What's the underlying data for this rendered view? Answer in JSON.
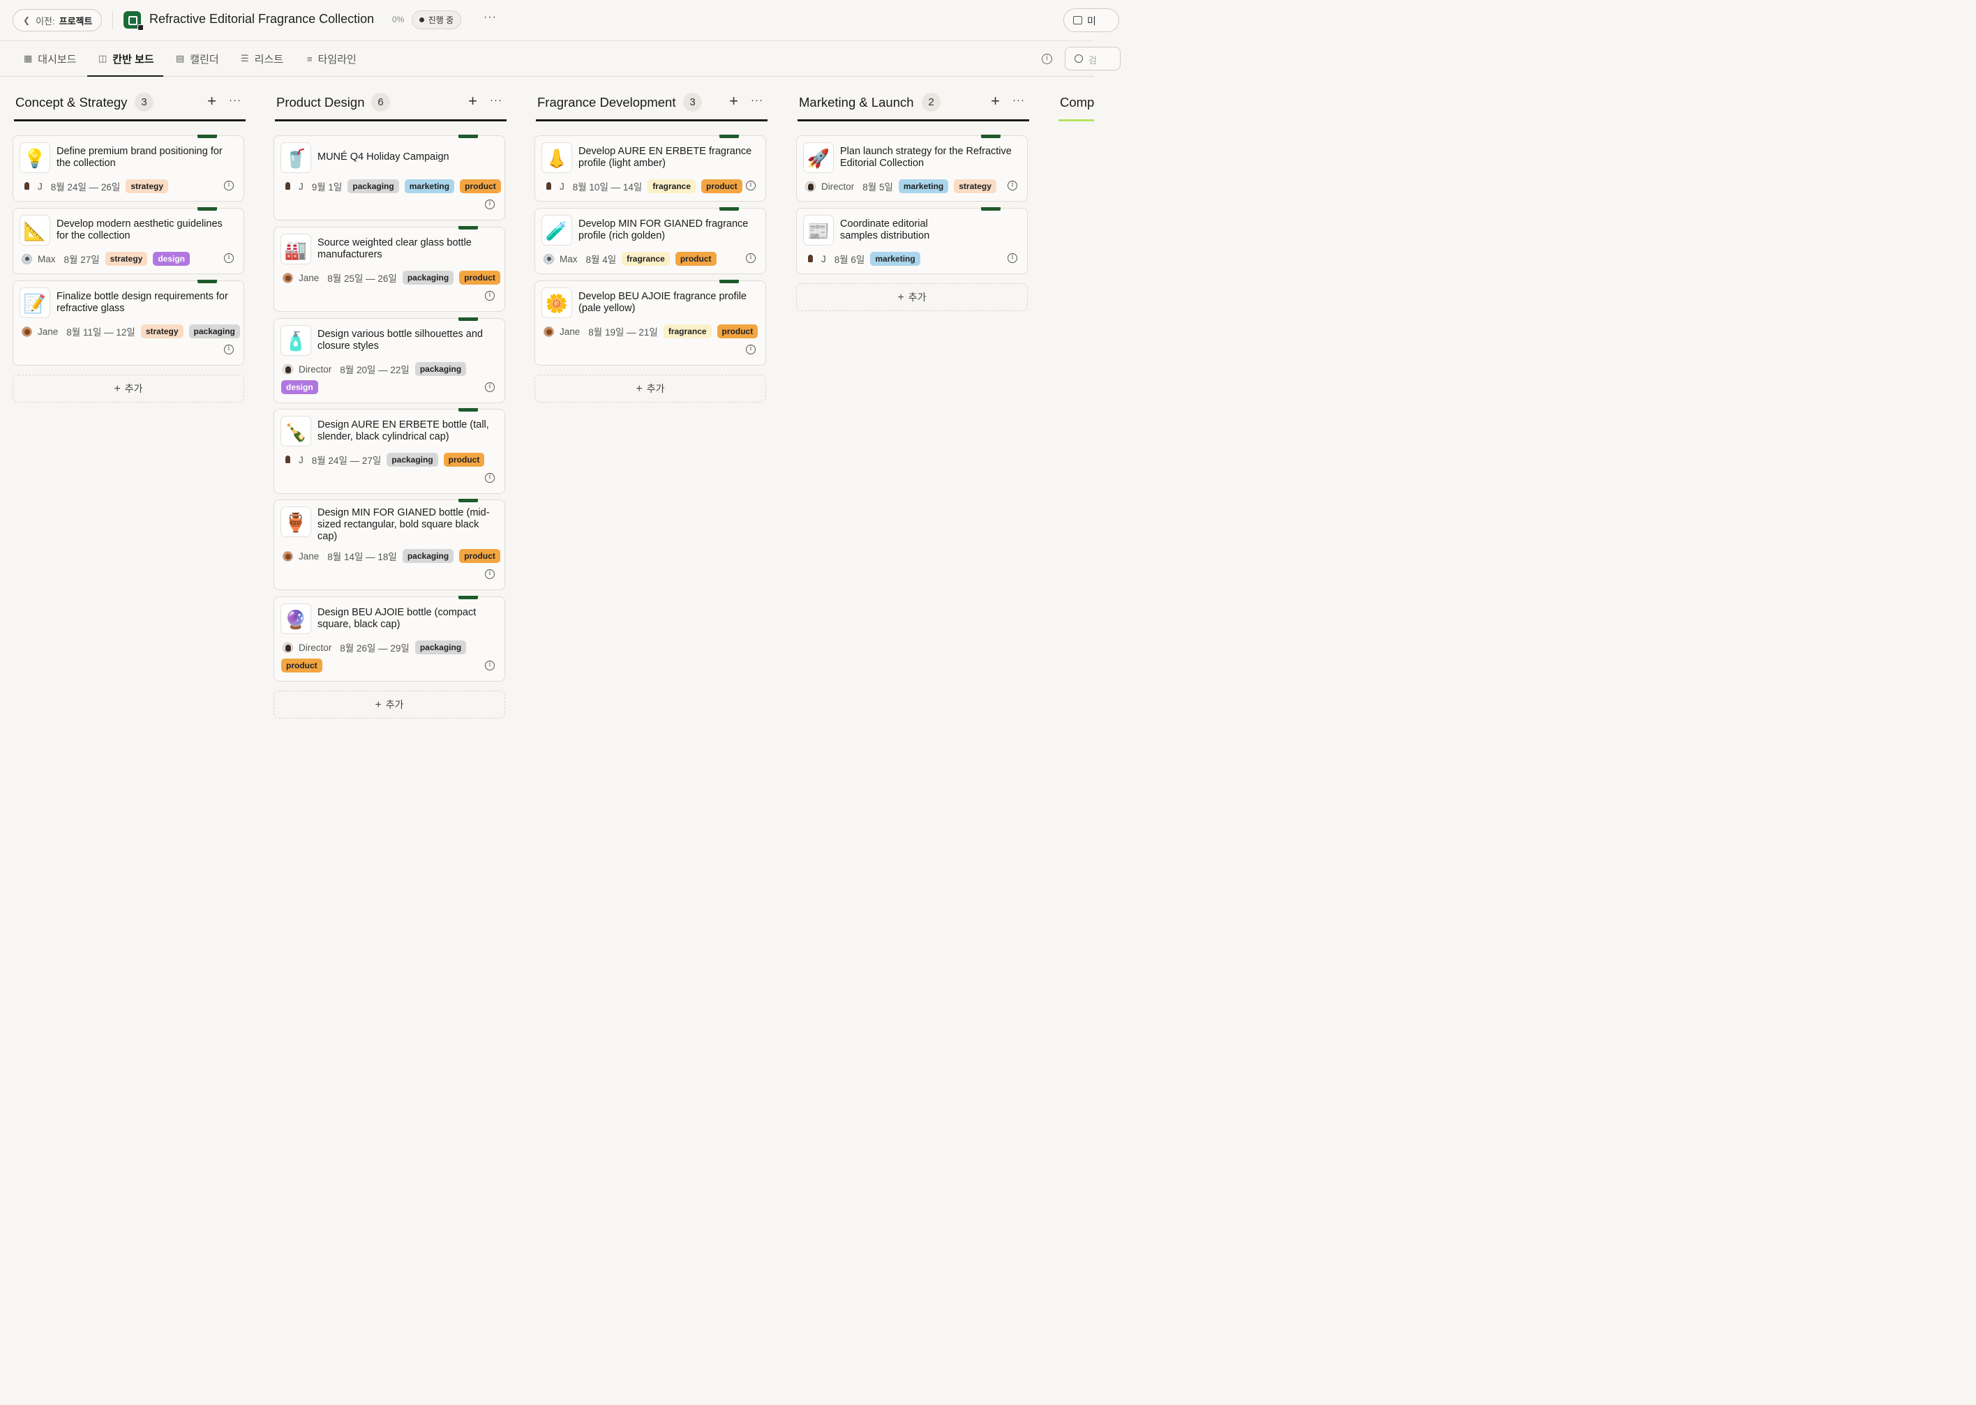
{
  "header": {
    "back_prefix": "이전:",
    "back_label": "프로젝트",
    "project_title": "Refractive Editorial Fragrance Collection",
    "progress": "0%",
    "status": "진행 중",
    "more": "···",
    "right_label": "미"
  },
  "tabs": [
    {
      "label": "대시보드",
      "icon": "grid-icon"
    },
    {
      "label": "칸반 보드",
      "icon": "kanban-icon"
    },
    {
      "label": "캘린더",
      "icon": "calendar-icon"
    },
    {
      "label": "리스트",
      "icon": "list-icon"
    },
    {
      "label": "타임라인",
      "icon": "timeline-icon"
    }
  ],
  "search": {
    "placeholder": "검"
  },
  "add_label": "추가",
  "columns": [
    {
      "title": "Concept & Strategy",
      "count": "3",
      "cards": [
        {
          "title": "Define premium brand positioning for the collection",
          "emoji": "💡",
          "assignee": "J",
          "avatar": "j",
          "date": "8월 24일 — 26일",
          "tags": [
            "strategy"
          ]
        },
        {
          "title": "Develop modern aesthetic guidelines for the collection",
          "emoji": "📐",
          "assignee": "Max",
          "avatar": "max",
          "date": "8월 27일",
          "tags": [
            "strategy",
            "design"
          ]
        },
        {
          "title": "Finalize bottle design requirements for refractive glass",
          "emoji": "📝",
          "assignee": "Jane",
          "avatar": "jane",
          "date": "8월 11일 — 12일",
          "tags": [
            "strategy",
            "packaging"
          ]
        }
      ]
    },
    {
      "title": "Product Design",
      "count": "6",
      "cards": [
        {
          "title": "MUNÉ Q4 Holiday Campaign",
          "emoji": "🥤",
          "assignee": "J",
          "avatar": "j",
          "date": "9월 1일",
          "tags": [
            "packaging",
            "marketing",
            "product"
          ]
        },
        {
          "title": "Source weighted clear glass bottle manufacturers",
          "emoji": "🏭",
          "assignee": "Jane",
          "avatar": "jane",
          "date": "8월 25일 — 26일",
          "tags": [
            "packaging",
            "product"
          ]
        },
        {
          "title": "Design various bottle silhouettes and closure styles",
          "emoji": "🧴",
          "assignee": "Director",
          "avatar": "dir",
          "date": "8월 20일 — 22일",
          "tags": [
            "packaging",
            "design"
          ]
        },
        {
          "title": "Design AURE EN ERBETE bottle (tall, slender, black cylindrical cap)",
          "emoji": "🍾",
          "assignee": "J",
          "avatar": "j",
          "date": "8월 24일 — 27일",
          "tags": [
            "packaging",
            "product"
          ]
        },
        {
          "title": "Design MIN FOR GIANED bottle (mid-sized rectangular, bold square black cap)",
          "emoji": "🏺",
          "assignee": "Jane",
          "avatar": "jane",
          "date": "8월 14일 — 18일",
          "tags": [
            "packaging",
            "product"
          ]
        },
        {
          "title": "Design BEU AJOIE bottle (compact square, black cap)",
          "emoji": "🔮",
          "assignee": "Director",
          "avatar": "dir",
          "date": "8월 26일 — 29일",
          "tags": [
            "packaging",
            "product"
          ]
        }
      ]
    },
    {
      "title": "Fragrance Development",
      "count": "3",
      "cards": [
        {
          "title": "Develop AURE EN ERBETE fragrance profile (light amber)",
          "emoji": "👃",
          "assignee": "J",
          "avatar": "j",
          "date": "8월 10일 — 14일",
          "tags": [
            "fragrance",
            "product"
          ]
        },
        {
          "title": "Develop MIN FOR GIANED fragrance profile (rich golden)",
          "emoji": "🧪",
          "assignee": "Max",
          "avatar": "max",
          "date": "8월 4일",
          "tags": [
            "fragrance",
            "product"
          ]
        },
        {
          "title": "Develop BEU AJOIE fragrance profile (pale yellow)",
          "emoji": "🌼",
          "assignee": "Jane",
          "avatar": "jane",
          "date": "8월 19일 — 21일",
          "tags": [
            "fragrance",
            "product"
          ]
        }
      ]
    },
    {
      "title": "Marketing & Launch",
      "count": "2",
      "cards": [
        {
          "title": "Plan launch strategy for the Refractive Editorial Collection",
          "emoji": "🚀",
          "assignee": "Director",
          "avatar": "dir",
          "date": "8월 5일",
          "tags": [
            "marketing",
            "strategy"
          ]
        },
        {
          "title": "Coordinate editorial samples distribution",
          "emoji": "📰",
          "assignee": "J",
          "avatar": "j",
          "date": "8월 6일",
          "tags": [
            "marketing"
          ]
        }
      ]
    },
    {
      "title": "Comp",
      "count": "",
      "cards": []
    }
  ],
  "colors": {
    "strategy": "#fadcc4",
    "design": "#b077e0",
    "packaging": "#d7d7d7",
    "marketing": "#a9d6ec",
    "product": "#f3a542",
    "fragrance": "#fbf1c8",
    "card_tab": "#1e5a2b",
    "last_column_accent": "#b6e35d"
  }
}
